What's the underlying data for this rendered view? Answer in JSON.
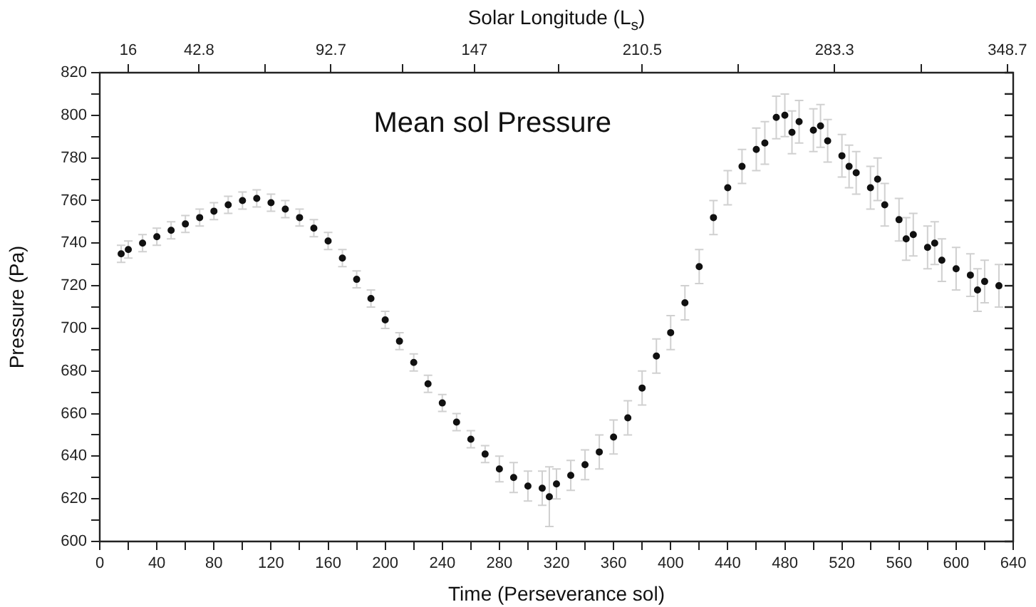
{
  "chart_data": {
    "type": "scatter",
    "title": "Mean sol Pressure",
    "xlabel": "Time (Perseverance sol)",
    "ylabel": "Pressure (Pa)",
    "x2label": "Solar Longitude (L$_{s}$)",
    "x": [
      15,
      20,
      30,
      40,
      50,
      60,
      70,
      80,
      90,
      100,
      110,
      120,
      130,
      140,
      150,
      160,
      170,
      180,
      190,
      200,
      210,
      220,
      230,
      240,
      250,
      260,
      270,
      280,
      290,
      300,
      310,
      315,
      320,
      330,
      340,
      350,
      360,
      370,
      380,
      390,
      400,
      410,
      420,
      430,
      440,
      450,
      460,
      466,
      474,
      480,
      485,
      490,
      500,
      505,
      510,
      520,
      525,
      530,
      540,
      545,
      550,
      560,
      565,
      570,
      580,
      585,
      590,
      600,
      610,
      615,
      620,
      630
    ],
    "series": [
      {
        "color": "#111111",
        "values": [
          735,
          737,
          740,
          743,
          746,
          749,
          752,
          755,
          758,
          760,
          761,
          759,
          756,
          752,
          747,
          741,
          733,
          723,
          714,
          704,
          694,
          684,
          674,
          665,
          656,
          648,
          641,
          634,
          630,
          626,
          625,
          621,
          627,
          631,
          636,
          642,
          649,
          658,
          672,
          687,
          698,
          712,
          729,
          752,
          766,
          776,
          784,
          787,
          799,
          800,
          792,
          797,
          793,
          795,
          788,
          781,
          776,
          773,
          766,
          770,
          758,
          751,
          742,
          744,
          738,
          740,
          732,
          728,
          725,
          718,
          722,
          720
        ],
        "errors": [
          4,
          4,
          4,
          4,
          4,
          4,
          4,
          4,
          4,
          4,
          4,
          4,
          4,
          4,
          4,
          4,
          4,
          4,
          4,
          4,
          4,
          4,
          4,
          4,
          4,
          4,
          4,
          6,
          7,
          7,
          8,
          14,
          7,
          7,
          7,
          8,
          8,
          8,
          8,
          8,
          8,
          8,
          8,
          8,
          8,
          8,
          10,
          10,
          10,
          10,
          10,
          10,
          10,
          10,
          10,
          10,
          10,
          10,
          10,
          10,
          10,
          10,
          10,
          10,
          10,
          10,
          10,
          10,
          10,
          10,
          10,
          10
        ]
      }
    ],
    "marker": "circle",
    "grid": false,
    "legend": false,
    "xlim": [
      0,
      640
    ],
    "xticks": [
      0,
      {
        "value": 20,
        "label": null
      },
      40,
      {
        "value": 60,
        "label": null
      },
      80,
      {
        "value": 100,
        "label": null
      },
      120,
      {
        "value": 140,
        "label": null
      },
      160,
      {
        "value": 180,
        "label": null
      },
      200,
      {
        "value": 220,
        "label": null
      },
      240,
      {
        "value": 260,
        "label": null
      },
      280,
      {
        "value": 300,
        "label": null
      },
      320,
      {
        "value": 340,
        "label": null
      },
      360,
      {
        "value": 380,
        "label": null
      },
      400,
      {
        "value": 420,
        "label": null
      },
      440,
      {
        "value": 460,
        "label": null
      },
      480,
      {
        "value": 500,
        "label": null
      },
      520,
      {
        "value": 540,
        "label": null
      },
      560,
      {
        "value": 580,
        "label": null
      },
      600,
      {
        "value": 620,
        "label": null
      },
      640
    ],
    "ylim": [
      600,
      820
    ],
    "yticks": [
      600,
      {
        "value": 610,
        "label": null
      },
      620,
      {
        "value": 630,
        "label": null
      },
      640,
      {
        "value": 650,
        "label": null
      },
      660,
      {
        "value": 670,
        "label": null
      },
      680,
      {
        "value": 690,
        "label": null
      },
      700,
      {
        "value": 710,
        "label": null
      },
      720,
      {
        "value": 730,
        "label": null
      },
      740,
      {
        "value": 750,
        "label": null
      },
      760,
      {
        "value": 770,
        "label": null
      },
      780,
      {
        "value": 790,
        "label": null
      },
      800,
      {
        "value": 810,
        "label": null
      },
      820
    ],
    "x2lim": [
      5.2,
      350.9
    ],
    "x2ticks": [
      16,
      42.8,
      {
        "value": 67.75,
        "label": null
      },
      92.7,
      {
        "value": 119.85,
        "label": null
      },
      147,
      {
        "value": 178.75,
        "label": null
      },
      210.5,
      {
        "value": 246.9,
        "label": null
      },
      283.3,
      {
        "value": 316,
        "label": null
      },
      348.7
    ]
  }
}
